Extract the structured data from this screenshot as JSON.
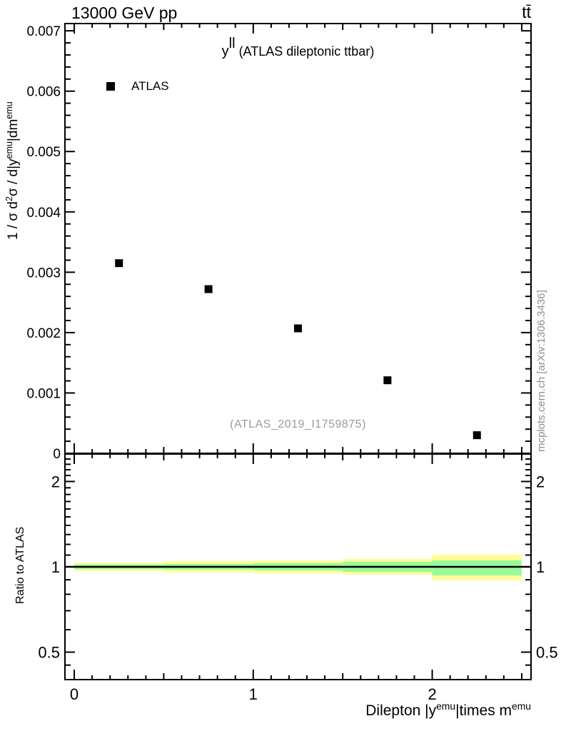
{
  "header": {
    "beam_energy": "13000 GeV pp",
    "process": "tt̄"
  },
  "plot": {
    "title_base": "y",
    "title_sup": "ll",
    "title_rest": " (ATLAS dileptonic ttbar)",
    "legend_label": "ATLAS",
    "watermark": "(ATLAS_2019_I1759875)",
    "side_note": "mcplots.cern.ch [arXiv:1306.3436]",
    "ylabel": {
      "p0": "1 / σ d",
      "sup0": "2",
      "p1": "σ / d|y",
      "sup1": "emu",
      "p2": "|dm",
      "sup2": "emu"
    },
    "ratio_ylabel": "Ratio to ATLAS",
    "xlabel": {
      "p0": "Dilepton |y",
      "sup0": "emu",
      "p1": "|times m",
      "sup1": "emu"
    }
  },
  "chart_data": {
    "type": "scatter",
    "title": "y^ll (ATLAS dileptonic ttbar)",
    "xlabel": "Dilepton |y^emu|times m^emu",
    "ylabel": "1/σ d²σ/d|y^emu|dm^emu",
    "legend_position": "top-left-inside",
    "marker_size_px": 11,
    "series": [
      {
        "name": "ATLAS",
        "marker": "filled-square",
        "color": "#000000",
        "x": [
          0.25,
          0.75,
          1.25,
          1.75,
          2.25
        ],
        "y": [
          0.00315,
          0.00272,
          0.00207,
          0.00121,
          0.0003
        ]
      }
    ],
    "main_axes": {
      "xlim": [
        -0.052,
        2.552
      ],
      "ylim": [
        0,
        0.00712
      ],
      "grid": false,
      "x_major_ticks": [
        0,
        1,
        2
      ],
      "x_major_labels": [
        "0",
        "1",
        "2"
      ],
      "x_medium_step": 0.5,
      "x_minor_step": 0.1,
      "y_major_ticks": [
        0,
        0.001,
        0.002,
        0.003,
        0.004,
        0.005,
        0.006,
        0.007
      ],
      "y_major_labels": [
        "0",
        "0.001",
        "0.002",
        "0.003",
        "0.004",
        "0.005",
        "0.006",
        "0.007"
      ],
      "y_minor_step": 0.0002
    },
    "ratio_axes": {
      "scale": "log",
      "ylim": [
        0.4,
        2.5
      ],
      "major_ticks": [
        0.5,
        1,
        2
      ],
      "major_labels": [
        "0.5",
        "1",
        "2"
      ],
      "minor_ticks": [
        0.45,
        0.6,
        0.7,
        0.8,
        0.9,
        1.1,
        1.2,
        1.3,
        1.4,
        1.5,
        1.6,
        1.7,
        1.8,
        1.9,
        2.1,
        2.2,
        2.3,
        2.4
      ],
      "reference_line": 1.0,
      "reference_color": "#000000"
    },
    "ratio_bands": {
      "bin_edges": [
        0,
        0.5,
        1.0,
        1.5,
        2.0,
        2.5
      ],
      "outer": {
        "color": "#ffff99",
        "lo": [
          0.966,
          0.955,
          0.949,
          0.938,
          0.895
        ],
        "hi": [
          1.034,
          1.048,
          1.054,
          1.066,
          1.105
        ]
      },
      "inner": {
        "color": "#99fb99",
        "lo": [
          0.982,
          0.977,
          0.971,
          0.96,
          0.932
        ],
        "hi": [
          1.018,
          1.024,
          1.03,
          1.042,
          1.054
        ]
      }
    }
  }
}
